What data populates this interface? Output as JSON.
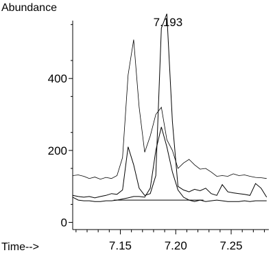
{
  "chart_data": {
    "type": "line",
    "ylabel": "Abundance",
    "xlabel": "Time-->",
    "peak_label": "7.193",
    "peak_label_x": 7.193,
    "xlim": [
      7.107,
      7.284
    ],
    "ylim": [
      -20,
      580
    ],
    "xticks": [
      7.15,
      7.2,
      7.25
    ],
    "xtick_labels": [
      "7.15",
      "7.20",
      "7.25"
    ],
    "yticks": [
      0,
      200,
      400
    ],
    "ytick_labels": [
      "0",
      "200",
      "400"
    ],
    "baseline": {
      "x": [
        7.144,
        7.225
      ],
      "y": [
        62,
        62
      ]
    },
    "series": [
      {
        "values_x": [
          7.107,
          7.112,
          7.117,
          7.122,
          7.127,
          7.132,
          7.137,
          7.142,
          7.147,
          7.152,
          7.157,
          7.162,
          7.167,
          7.172,
          7.177,
          7.182,
          7.187,
          7.192,
          7.197,
          7.202,
          7.207,
          7.212,
          7.217,
          7.222,
          7.227,
          7.232,
          7.237,
          7.242,
          7.247,
          7.252,
          7.257,
          7.262,
          7.267,
          7.272,
          7.277,
          7.282
        ],
        "values_y": [
          130,
          132,
          128,
          122,
          126,
          120,
          125,
          122,
          130,
          180,
          410,
          508,
          320,
          195,
          240,
          300,
          320,
          230,
          200,
          150,
          165,
          175,
          160,
          148,
          150,
          140,
          128,
          130,
          128,
          135,
          130,
          132,
          128,
          125,
          124,
          122
        ]
      },
      {
        "values_x": [
          7.107,
          7.112,
          7.117,
          7.122,
          7.127,
          7.132,
          7.137,
          7.142,
          7.147,
          7.152,
          7.157,
          7.162,
          7.167,
          7.172,
          7.177,
          7.182,
          7.187,
          7.192,
          7.197,
          7.202,
          7.207,
          7.212,
          7.217,
          7.222,
          7.227,
          7.232,
          7.237,
          7.242,
          7.247,
          7.252,
          7.257,
          7.262,
          7.267,
          7.272,
          7.277,
          7.282
        ],
        "values_y": [
          75,
          72,
          70,
          72,
          68,
          72,
          75,
          80,
          78,
          90,
          210,
          160,
          95,
          75,
          80,
          130,
          540,
          580,
          280,
          100,
          90,
          85,
          92,
          88,
          95,
          80,
          75,
          105,
          85,
          82,
          80,
          78,
          75,
          108,
          95,
          70
        ]
      },
      {
        "values_x": [
          7.107,
          7.112,
          7.117,
          7.122,
          7.127,
          7.132,
          7.137,
          7.142,
          7.147,
          7.152,
          7.157,
          7.162,
          7.167,
          7.172,
          7.177,
          7.182,
          7.187,
          7.192,
          7.197,
          7.202,
          7.207,
          7.212,
          7.217,
          7.222,
          7.227,
          7.232,
          7.237,
          7.242,
          7.247,
          7.252,
          7.257,
          7.262,
          7.267,
          7.272,
          7.277,
          7.282
        ],
        "values_y": [
          70,
          62,
          60,
          60,
          58,
          58,
          60,
          60,
          62,
          65,
          68,
          72,
          72,
          70,
          95,
          200,
          265,
          210,
          140,
          90,
          70,
          62,
          58,
          62,
          58,
          60,
          62,
          60,
          58,
          58,
          58,
          60,
          58,
          60,
          60,
          60
        ]
      }
    ]
  }
}
